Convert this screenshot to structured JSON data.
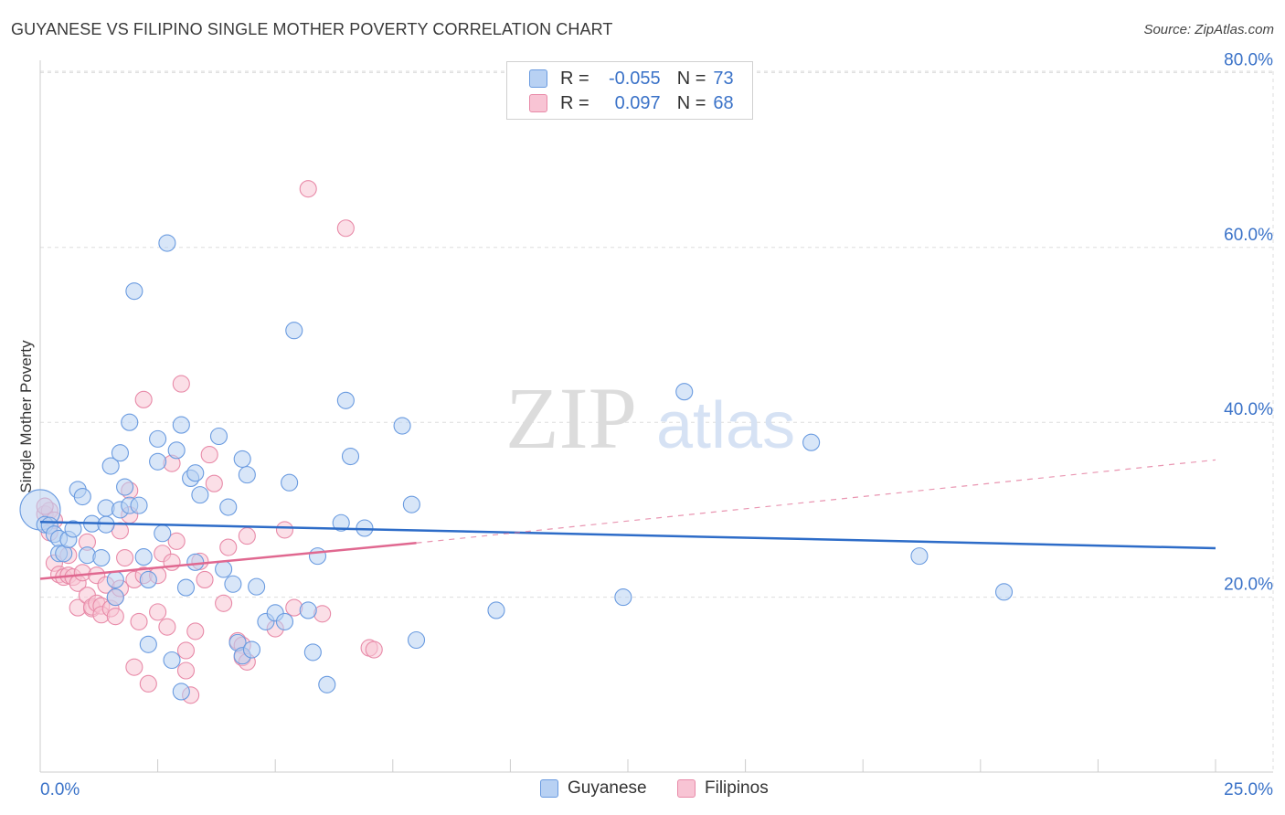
{
  "title": "GUYANESE VS FILIPINO SINGLE MOTHER POVERTY CORRELATION CHART",
  "source": "Source: ZipAtlas.com",
  "watermark": {
    "zip": "ZIP",
    "atlas": "atlas"
  },
  "legend": {
    "r_label": "R =",
    "n_label": "N =",
    "guyanese": {
      "r": "-0.055",
      "n": "73"
    },
    "filipinos": {
      "r": "0.097",
      "n": "68"
    }
  },
  "bottom_legend": {
    "guyanese": "Guyanese",
    "filipinos": "Filipinos"
  },
  "chart_data": {
    "type": "scatter",
    "title": "GUYANESE VS FILIPINO SINGLE MOTHER POVERTY CORRELATION CHART",
    "xlabel": "",
    "ylabel": "Single Mother Poverty",
    "xlim": [
      0,
      25
    ],
    "ylim": [
      0,
      83
    ],
    "x_tick_labels": {
      "left": "0.0%",
      "right": "25.0%"
    },
    "y_ticks": [
      {
        "value": 20,
        "label": "20.0%"
      },
      {
        "value": 40,
        "label": "40.0%"
      },
      {
        "value": 60,
        "label": "60.0%"
      },
      {
        "value": 80,
        "label": "80.0%"
      }
    ],
    "colors": {
      "guyanese": "#6a9be0",
      "guyanese_fill": "#b8d1f3",
      "guyanese_line": "#2d6cc8",
      "filipinos": "#e88aa8",
      "filipinos_fill": "#f8c4d4",
      "filipinos_line": "#e06890"
    },
    "series": [
      {
        "name": "Guyanese",
        "trend": {
          "x0": 0,
          "y0": 28.6,
          "x1": 25,
          "y1": 25.6,
          "dashed_to": null
        },
        "points": [
          [
            0.0,
            30.0
          ],
          [
            0.1,
            28.3
          ],
          [
            0.2,
            28.2
          ],
          [
            0.3,
            27.2
          ],
          [
            0.4,
            26.7
          ],
          [
            0.4,
            25.0
          ],
          [
            0.5,
            25.0
          ],
          [
            0.6,
            26.6
          ],
          [
            0.7,
            27.8
          ],
          [
            0.8,
            32.3
          ],
          [
            0.9,
            31.5
          ],
          [
            1.0,
            24.8
          ],
          [
            1.1,
            28.4
          ],
          [
            1.3,
            24.5
          ],
          [
            1.4,
            28.3
          ],
          [
            1.4,
            30.2
          ],
          [
            1.5,
            35.0
          ],
          [
            1.6,
            22.0
          ],
          [
            1.6,
            20.0
          ],
          [
            1.7,
            30.0
          ],
          [
            1.7,
            36.5
          ],
          [
            1.8,
            32.6
          ],
          [
            1.9,
            30.5
          ],
          [
            1.9,
            40.0
          ],
          [
            2.0,
            55.0
          ],
          [
            2.1,
            30.5
          ],
          [
            2.2,
            24.6
          ],
          [
            2.3,
            14.6
          ],
          [
            2.3,
            22.0
          ],
          [
            2.5,
            38.1
          ],
          [
            2.5,
            35.5
          ],
          [
            2.6,
            27.3
          ],
          [
            2.7,
            60.5
          ],
          [
            2.8,
            12.8
          ],
          [
            2.9,
            36.8
          ],
          [
            3.0,
            39.7
          ],
          [
            3.0,
            9.2
          ],
          [
            3.1,
            21.1
          ],
          [
            3.2,
            33.6
          ],
          [
            3.3,
            24.0
          ],
          [
            3.3,
            34.2
          ],
          [
            3.4,
            31.7
          ],
          [
            3.8,
            38.4
          ],
          [
            3.9,
            23.2
          ],
          [
            4.0,
            30.3
          ],
          [
            4.1,
            21.5
          ],
          [
            4.2,
            14.8
          ],
          [
            4.3,
            35.8
          ],
          [
            4.3,
            13.3
          ],
          [
            4.4,
            34.0
          ],
          [
            4.5,
            14.0
          ],
          [
            4.6,
            21.2
          ],
          [
            4.8,
            17.2
          ],
          [
            5.0,
            18.2
          ],
          [
            5.2,
            17.2
          ],
          [
            5.3,
            33.1
          ],
          [
            5.4,
            50.5
          ],
          [
            5.7,
            18.5
          ],
          [
            5.8,
            13.7
          ],
          [
            5.9,
            24.7
          ],
          [
            6.1,
            10.0
          ],
          [
            6.4,
            28.5
          ],
          [
            6.5,
            42.5
          ],
          [
            6.6,
            36.1
          ],
          [
            6.9,
            27.9
          ],
          [
            7.7,
            39.6
          ],
          [
            7.9,
            30.6
          ],
          [
            8.0,
            15.1
          ],
          [
            9.7,
            18.5
          ],
          [
            12.4,
            20.0
          ],
          [
            13.7,
            43.5
          ],
          [
            16.4,
            37.7
          ],
          [
            18.7,
            24.7
          ],
          [
            20.5,
            20.6
          ]
        ]
      },
      {
        "name": "Filipinos",
        "trend": {
          "x0": 0,
          "y0": 22.1,
          "x1": 8.0,
          "y1": 26.2,
          "dashed_to": {
            "x": 25,
            "y": 35.7
          }
        },
        "points": [
          [
            0.1,
            29.5
          ],
          [
            0.2,
            27.4
          ],
          [
            0.2,
            29.9
          ],
          [
            0.3,
            23.9
          ],
          [
            0.4,
            22.6
          ],
          [
            0.5,
            22.3
          ],
          [
            0.6,
            22.5
          ],
          [
            0.6,
            24.8
          ],
          [
            0.7,
            22.3
          ],
          [
            0.8,
            21.6
          ],
          [
            0.8,
            18.8
          ],
          [
            0.9,
            22.8
          ],
          [
            1.0,
            20.2
          ],
          [
            1.0,
            26.3
          ],
          [
            1.1,
            18.7
          ],
          [
            1.1,
            18.9
          ],
          [
            1.2,
            19.3
          ],
          [
            1.2,
            22.5
          ],
          [
            1.3,
            19.0
          ],
          [
            1.3,
            18.0
          ],
          [
            1.4,
            21.4
          ],
          [
            1.5,
            18.7
          ],
          [
            1.6,
            17.8
          ],
          [
            1.6,
            20.0
          ],
          [
            1.7,
            27.6
          ],
          [
            1.7,
            21.0
          ],
          [
            1.9,
            29.4
          ],
          [
            1.9,
            32.2
          ],
          [
            2.0,
            22.0
          ],
          [
            2.0,
            12.0
          ],
          [
            2.1,
            17.2
          ],
          [
            2.2,
            22.5
          ],
          [
            2.2,
            42.6
          ],
          [
            2.3,
            10.1
          ],
          [
            2.5,
            22.5
          ],
          [
            2.5,
            18.3
          ],
          [
            2.6,
            25.0
          ],
          [
            2.7,
            16.6
          ],
          [
            2.8,
            24.0
          ],
          [
            2.9,
            26.4
          ],
          [
            3.0,
            44.4
          ],
          [
            3.1,
            13.9
          ],
          [
            3.1,
            11.6
          ],
          [
            3.2,
            8.8
          ],
          [
            3.3,
            16.1
          ],
          [
            3.4,
            24.1
          ],
          [
            3.6,
            36.3
          ],
          [
            3.7,
            33.0
          ],
          [
            3.9,
            19.3
          ],
          [
            4.0,
            25.7
          ],
          [
            4.2,
            15.0
          ],
          [
            4.3,
            14.5
          ],
          [
            4.3,
            13.1
          ],
          [
            4.4,
            27.0
          ],
          [
            4.4,
            12.6
          ],
          [
            5.0,
            16.4
          ],
          [
            5.2,
            27.7
          ],
          [
            5.4,
            18.8
          ],
          [
            5.7,
            66.7
          ],
          [
            6.0,
            18.1
          ],
          [
            6.5,
            62.2
          ],
          [
            7.0,
            14.2
          ],
          [
            7.1,
            14.0
          ],
          [
            0.1,
            30.4
          ],
          [
            0.3,
            28.8
          ],
          [
            2.8,
            35.3
          ],
          [
            3.5,
            22.0
          ],
          [
            1.8,
            24.5
          ]
        ]
      }
    ]
  }
}
